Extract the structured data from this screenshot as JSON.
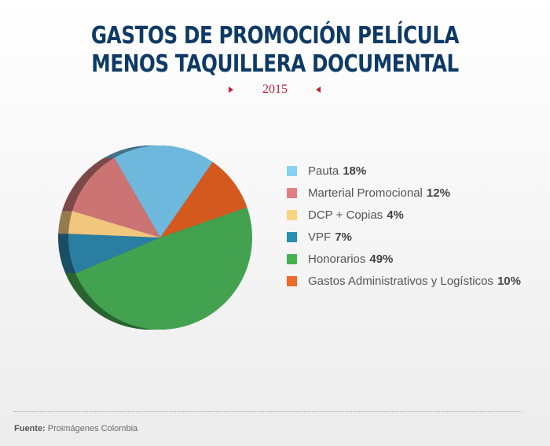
{
  "title_line1": "GASTOS DE PROMOCIÓN PELÍCULA",
  "title_line2": "MENOS TAQUILLERA DOCUMENTAL",
  "year": "2015",
  "source_label": "Fuente:",
  "source_text": "Proimágenes Colombia",
  "chart_data": {
    "type": "pie",
    "style": "3d",
    "slices": [
      {
        "label": "Pauta",
        "value": 18,
        "value_label": "18%",
        "color": "#6eb8dd",
        "swatch": "#87d1f2"
      },
      {
        "label": "Gastos Administrativos y Logísticos",
        "value": 10,
        "value_label": "10%",
        "color": "#d4591f",
        "swatch": "#ee6a2a"
      },
      {
        "label": "Honorarios",
        "value": 49,
        "value_label": "49%",
        "color": "#43a24f",
        "swatch": "#46b24f"
      },
      {
        "label": "VPF",
        "value": 7,
        "value_label": "7%",
        "color": "#2a7ea2",
        "swatch": "#2a8fb3"
      },
      {
        "label": "DCP + Copias",
        "value": 4,
        "value_label": "4%",
        "color": "#f0c77d",
        "swatch": "#fbd37f"
      },
      {
        "label": "Marterial Promocional",
        "value": 12,
        "value_label": "12%",
        "color": "#cc7474",
        "swatch": "#e08080"
      }
    ],
    "legend": {
      "placement": "right",
      "items": [
        {
          "label": "Pauta",
          "value_label": "18%",
          "color": "#87d1f2"
        },
        {
          "label": "Marterial Promocional",
          "value_label": "12%",
          "color": "#e08080"
        },
        {
          "label": "DCP + Copias",
          "value_label": "4%",
          "color": "#fbd37f"
        },
        {
          "label": "VPF",
          "value_label": "7%",
          "color": "#2a8fb3"
        },
        {
          "label": "Honorarios",
          "value_label": "49%",
          "color": "#46b24f"
        },
        {
          "label": "Gastos Administrativos y Logísticos",
          "value_label": "10%",
          "color": "#ee6a2a"
        }
      ]
    }
  }
}
